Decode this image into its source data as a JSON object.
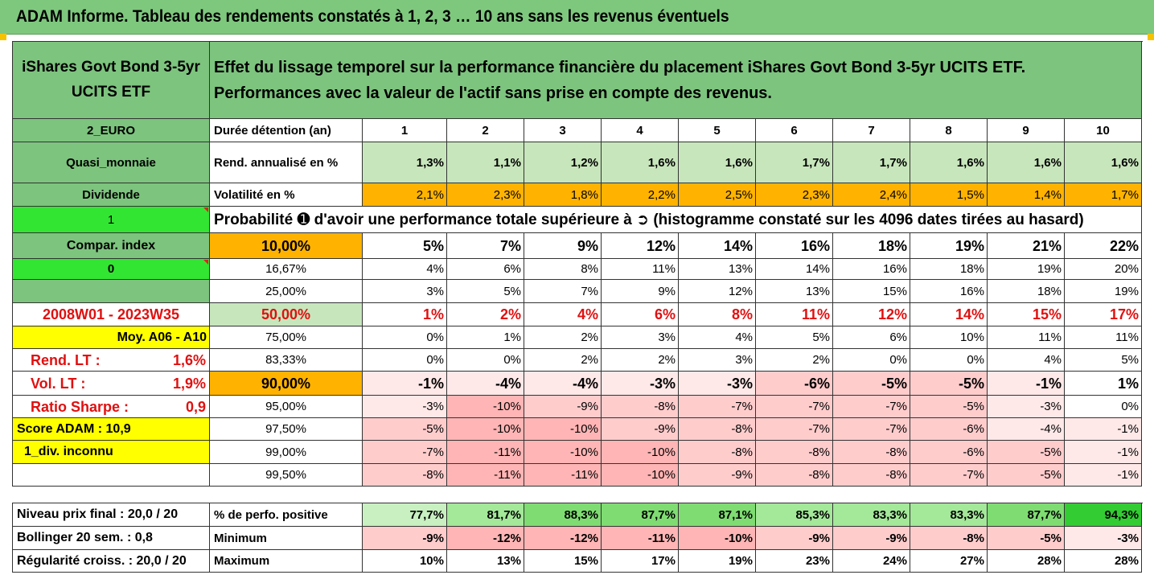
{
  "title": "ADAM Informe. Tableau des rendements constatés à 1, 2, 3 … 10 ans sans les revenus éventuels",
  "fund_name": "iShares Govt Bond 3-5yr UCITS ETF",
  "header_line1": "Effet du lissage temporel sur la performance financière du placement iShares Govt Bond 3-5yr UCITS ETF.",
  "header_line2": "Performances avec la valeur de l'actif sans prise en compte des revenus.",
  "left_labels": {
    "currency": "2_EURO",
    "category": "Quasi_monnaie",
    "dividend": "Dividende",
    "one": "1",
    "compar_index": "Compar. index",
    "zero": "0",
    "period": "2008W01 - 2023W35",
    "moy": "Moy. A06 - A10",
    "rend_lt_label": "Rend. LT :",
    "rend_lt_value": "1,6%",
    "vol_lt_label": "Vol. LT :",
    "vol_lt_value": "1,9%",
    "sharpe_label": "Ratio Sharpe :",
    "sharpe_value": "0,9",
    "score": "Score ADAM : 10,9",
    "div_inconnu": "1_div. inconnu"
  },
  "row_labels": {
    "duration": "Durée détention (an)",
    "rend": "Rend. annualisé en %",
    "vol": "Volatilité en %",
    "proba": "Probabilité ➊ d'avoir une performance totale supérieure à ➲ (histogramme constaté sur les 4096 dates tirées au hasard)"
  },
  "years": [
    "1",
    "2",
    "3",
    "4",
    "5",
    "6",
    "7",
    "8",
    "9",
    "10"
  ],
  "rend": [
    "1,3%",
    "1,1%",
    "1,2%",
    "1,6%",
    "1,6%",
    "1,7%",
    "1,7%",
    "1,6%",
    "1,6%",
    "1,6%"
  ],
  "vol": [
    "2,1%",
    "2,3%",
    "1,8%",
    "2,2%",
    "2,5%",
    "2,3%",
    "2,4%",
    "1,5%",
    "1,4%",
    "1,7%"
  ],
  "proba_rows": [
    {
      "pct": "10,00%",
      "values": [
        "5%",
        "7%",
        "9%",
        "12%",
        "14%",
        "16%",
        "18%",
        "19%",
        "21%",
        "22%"
      ]
    },
    {
      "pct": "16,67%",
      "values": [
        "4%",
        "6%",
        "8%",
        "11%",
        "13%",
        "14%",
        "16%",
        "18%",
        "19%",
        "20%"
      ]
    },
    {
      "pct": "25,00%",
      "values": [
        "3%",
        "5%",
        "7%",
        "9%",
        "12%",
        "13%",
        "15%",
        "16%",
        "18%",
        "19%"
      ]
    },
    {
      "pct": "50,00%",
      "values": [
        "1%",
        "2%",
        "4%",
        "6%",
        "8%",
        "11%",
        "12%",
        "14%",
        "15%",
        "17%"
      ]
    },
    {
      "pct": "75,00%",
      "values": [
        "0%",
        "1%",
        "2%",
        "3%",
        "4%",
        "5%",
        "6%",
        "10%",
        "11%",
        "11%"
      ]
    },
    {
      "pct": "83,33%",
      "values": [
        "0%",
        "0%",
        "2%",
        "2%",
        "3%",
        "2%",
        "0%",
        "0%",
        "4%",
        "5%"
      ]
    },
    {
      "pct": "90,00%",
      "values": [
        "-1%",
        "-4%",
        "-4%",
        "-3%",
        "-3%",
        "-6%",
        "-5%",
        "-5%",
        "-1%",
        "1%"
      ]
    },
    {
      "pct": "95,00%",
      "values": [
        "-3%",
        "-10%",
        "-9%",
        "-8%",
        "-7%",
        "-7%",
        "-7%",
        "-5%",
        "-3%",
        "0%"
      ]
    },
    {
      "pct": "97,50%",
      "values": [
        "-5%",
        "-10%",
        "-10%",
        "-9%",
        "-8%",
        "-7%",
        "-7%",
        "-6%",
        "-4%",
        "-1%"
      ]
    },
    {
      "pct": "99,00%",
      "values": [
        "-7%",
        "-11%",
        "-10%",
        "-10%",
        "-8%",
        "-8%",
        "-8%",
        "-6%",
        "-5%",
        "-1%"
      ]
    },
    {
      "pct": "99,50%",
      "values": [
        "-8%",
        "-11%",
        "-11%",
        "-10%",
        "-9%",
        "-8%",
        "-8%",
        "-7%",
        "-5%",
        "-1%"
      ]
    }
  ],
  "bottom": [
    {
      "left": "Niveau prix final : 20,0 / 20",
      "label": "% de perfo. positive",
      "values": [
        "77,7%",
        "81,7%",
        "88,3%",
        "87,7%",
        "87,1%",
        "85,3%",
        "83,3%",
        "83,3%",
        "87,7%",
        "94,3%"
      ]
    },
    {
      "left": "Bollinger 20 sem. :  0,8",
      "label": "Minimum",
      "values": [
        "-9%",
        "-12%",
        "-12%",
        "-11%",
        "-10%",
        "-9%",
        "-9%",
        "-8%",
        "-5%",
        "-3%"
      ]
    },
    {
      "left": "Régularité croiss. : 20,0 / 20",
      "label": "Maximum",
      "values": [
        "10%",
        "13%",
        "15%",
        "17%",
        "19%",
        "23%",
        "24%",
        "27%",
        "28%",
        "28%"
      ]
    }
  ],
  "colors": {
    "green": "#7dc47e",
    "orange": "#ffb300",
    "bright_green": "#33e533",
    "yellow": "#ffff00",
    "red_text": "#e01010"
  }
}
